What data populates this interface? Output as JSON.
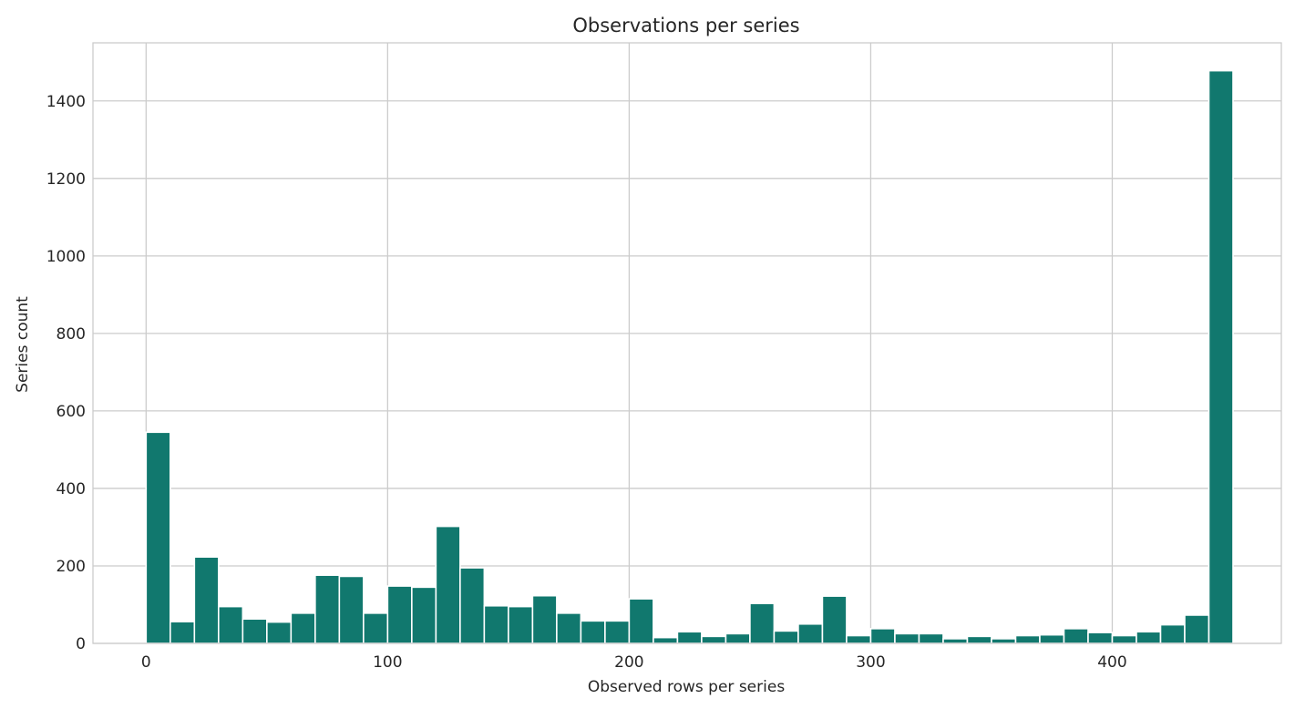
{
  "chart_data": {
    "type": "bar",
    "title": "Observations per series",
    "xlabel": "Observed rows per series",
    "ylabel": "Series count",
    "xlim": [
      -22,
      470
    ],
    "ylim": [
      0,
      1550
    ],
    "bin_width": 10,
    "x": [
      0,
      10,
      20,
      30,
      40,
      50,
      60,
      70,
      80,
      90,
      100,
      110,
      120,
      130,
      140,
      150,
      160,
      170,
      180,
      190,
      200,
      210,
      220,
      230,
      240,
      250,
      260,
      270,
      280,
      290,
      300,
      310,
      320,
      330,
      340,
      350,
      360,
      370,
      380,
      390,
      400,
      410,
      420,
      430,
      440
    ],
    "values": [
      545,
      56,
      223,
      95,
      63,
      55,
      78,
      176,
      173,
      78,
      148,
      145,
      302,
      195,
      97,
      95,
      123,
      78,
      58,
      58,
      115,
      15,
      30,
      18,
      25,
      103,
      32,
      50,
      122,
      20,
      38,
      25,
      25,
      12,
      18,
      12,
      20,
      22,
      38,
      28,
      20,
      30,
      48,
      73,
      1478
    ],
    "xticks": [
      0,
      100,
      200,
      300,
      400
    ],
    "xtick_labels": [
      "0",
      "100",
      "200",
      "300",
      "400"
    ],
    "yticks": [
      0,
      200,
      400,
      600,
      800,
      1000,
      1200,
      1400
    ],
    "ytick_labels": [
      "0",
      "200",
      "400",
      "600",
      "800",
      "1000",
      "1200",
      "1400"
    ],
    "grid": true,
    "bar_color": "#11786e",
    "grid_color": "#cccccc"
  }
}
